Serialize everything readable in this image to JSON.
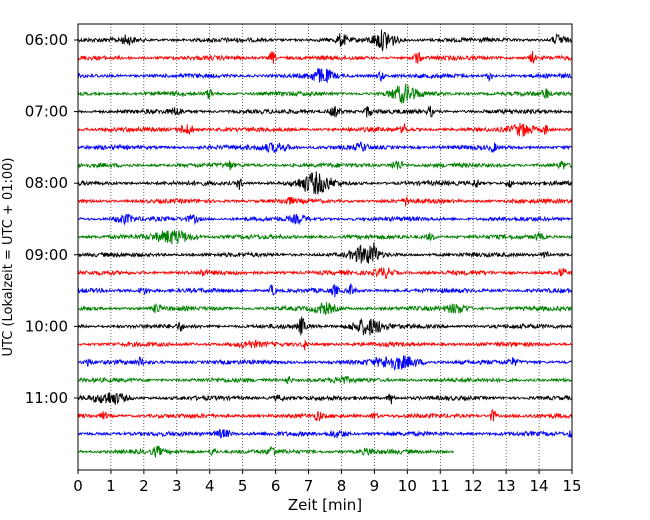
{
  "chart_data": {
    "type": "line",
    "title": "",
    "xlabel": "Zeit  [min]",
    "ylabel": "UTC (Lokalzeit = UTC + 01:00)",
    "xlim": [
      0,
      15
    ],
    "x_ticks": [
      0,
      1,
      2,
      3,
      4,
      5,
      6,
      7,
      8,
      9,
      10,
      11,
      12,
      13,
      14,
      15
    ],
    "x_tick_labels": [
      "0",
      "1",
      "2",
      "3",
      "4",
      "5",
      "6",
      "7",
      "8",
      "9",
      "10",
      "11",
      "12",
      "13",
      "14",
      "15"
    ],
    "y_tick_labels": [
      "06:00",
      "07:00",
      "08:00",
      "09:00",
      "10:00",
      "11:00"
    ],
    "grid": "vertical dotted lines at every minute",
    "row_interval_min": 15,
    "trace_colors": [
      "#000000",
      "#ff0000",
      "#0000ff",
      "#008000"
    ],
    "traces": [
      {
        "start": "06:00",
        "end_min": 15,
        "events": [
          {
            "t": 9.3,
            "amp": 1.2,
            "dur": 0.6
          },
          {
            "t": 8.0,
            "amp": 0.7,
            "dur": 0.2
          },
          {
            "t": 1.5,
            "amp": 0.5,
            "dur": 0.3
          },
          {
            "t": 14.6,
            "amp": 0.6,
            "dur": 0.3
          }
        ]
      },
      {
        "start": "06:15",
        "end_min": 15,
        "events": [
          {
            "t": 5.9,
            "amp": 0.8,
            "dur": 0.1
          },
          {
            "t": 10.3,
            "amp": 0.8,
            "dur": 0.1
          },
          {
            "t": 13.8,
            "amp": 0.7,
            "dur": 0.1
          }
        ]
      },
      {
        "start": "06:30",
        "end_min": 15,
        "events": [
          {
            "t": 7.4,
            "amp": 0.8,
            "dur": 0.6
          },
          {
            "t": 9.2,
            "amp": 0.6,
            "dur": 0.1
          },
          {
            "t": 12.5,
            "amp": 0.5,
            "dur": 0.1
          }
        ]
      },
      {
        "start": "06:45",
        "end_min": 15,
        "events": [
          {
            "t": 9.9,
            "amp": 1.0,
            "dur": 0.7
          },
          {
            "t": 4.0,
            "amp": 0.6,
            "dur": 0.1
          },
          {
            "t": 14.2,
            "amp": 0.6,
            "dur": 0.1
          }
        ]
      },
      {
        "start": "07:00",
        "end_min": 15,
        "events": [
          {
            "t": 7.8,
            "amp": 0.6,
            "dur": 0.3
          },
          {
            "t": 8.8,
            "amp": 0.7,
            "dur": 0.1
          },
          {
            "t": 10.7,
            "amp": 0.6,
            "dur": 0.1
          },
          {
            "t": 3.0,
            "amp": 0.4,
            "dur": 0.3
          }
        ]
      },
      {
        "start": "07:15",
        "end_min": 15,
        "events": [
          {
            "t": 3.3,
            "amp": 0.6,
            "dur": 0.4
          },
          {
            "t": 9.9,
            "amp": 0.6,
            "dur": 0.1
          },
          {
            "t": 13.5,
            "amp": 0.7,
            "dur": 0.6
          },
          {
            "t": 14.2,
            "amp": 0.6,
            "dur": 0.1
          }
        ]
      },
      {
        "start": "07:30",
        "end_min": 15,
        "events": [
          {
            "t": 6.0,
            "amp": 0.5,
            "dur": 0.8
          },
          {
            "t": 8.6,
            "amp": 0.4,
            "dur": 0.3
          },
          {
            "t": 12.6,
            "amp": 0.5,
            "dur": 0.1
          }
        ]
      },
      {
        "start": "07:45",
        "end_min": 15,
        "events": [
          {
            "t": 4.6,
            "amp": 0.5,
            "dur": 0.1
          },
          {
            "t": 9.7,
            "amp": 0.6,
            "dur": 0.3
          },
          {
            "t": 14.7,
            "amp": 0.5,
            "dur": 0.1
          }
        ]
      },
      {
        "start": "08:00",
        "end_min": 15,
        "events": [
          {
            "t": 7.2,
            "amp": 1.2,
            "dur": 0.9
          },
          {
            "t": 4.9,
            "amp": 0.7,
            "dur": 0.1
          },
          {
            "t": 12.1,
            "amp": 0.5,
            "dur": 0.1
          },
          {
            "t": 13.1,
            "amp": 0.5,
            "dur": 0.1
          }
        ]
      },
      {
        "start": "08:15",
        "end_min": 15,
        "events": [
          {
            "t": 10.0,
            "amp": 0.6,
            "dur": 0.1
          },
          {
            "t": 6.4,
            "amp": 0.3,
            "dur": 0.3
          }
        ]
      },
      {
        "start": "08:30",
        "end_min": 15,
        "events": [
          {
            "t": 1.4,
            "amp": 0.5,
            "dur": 0.5
          },
          {
            "t": 3.5,
            "amp": 0.4,
            "dur": 0.3
          },
          {
            "t": 6.7,
            "amp": 0.4,
            "dur": 0.4
          }
        ]
      },
      {
        "start": "08:45",
        "end_min": 15,
        "events": [
          {
            "t": 2.9,
            "amp": 0.8,
            "dur": 1.0
          },
          {
            "t": 10.7,
            "amp": 0.4,
            "dur": 0.2
          },
          {
            "t": 14.0,
            "amp": 0.4,
            "dur": 0.2
          }
        ]
      },
      {
        "start": "09:00",
        "end_min": 15,
        "events": [
          {
            "t": 8.7,
            "amp": 1.0,
            "dur": 0.7
          },
          {
            "t": 9.0,
            "amp": 0.8,
            "dur": 0.1
          },
          {
            "t": 14.2,
            "amp": 0.7,
            "dur": 0.1
          }
        ]
      },
      {
        "start": "09:15",
        "end_min": 15,
        "events": [
          {
            "t": 9.3,
            "amp": 0.6,
            "dur": 0.5
          },
          {
            "t": 3.8,
            "amp": 0.4,
            "dur": 0.1
          },
          {
            "t": 14.7,
            "amp": 0.5,
            "dur": 0.1
          }
        ]
      },
      {
        "start": "09:30",
        "end_min": 15,
        "events": [
          {
            "t": 5.9,
            "amp": 0.7,
            "dur": 0.1
          },
          {
            "t": 7.8,
            "amp": 0.6,
            "dur": 0.1
          },
          {
            "t": 8.3,
            "amp": 0.7,
            "dur": 0.1
          },
          {
            "t": 2.0,
            "amp": 0.4,
            "dur": 0.3
          }
        ]
      },
      {
        "start": "09:45",
        "end_min": 15,
        "events": [
          {
            "t": 2.4,
            "amp": 0.7,
            "dur": 0.1
          },
          {
            "t": 7.5,
            "amp": 0.6,
            "dur": 0.5
          },
          {
            "t": 11.5,
            "amp": 0.5,
            "dur": 0.6
          }
        ]
      },
      {
        "start": "10:00",
        "end_min": 15,
        "events": [
          {
            "t": 6.8,
            "amp": 1.2,
            "dur": 0.1
          },
          {
            "t": 8.8,
            "amp": 1.0,
            "dur": 0.9
          },
          {
            "t": 3.1,
            "amp": 0.5,
            "dur": 0.1
          }
        ]
      },
      {
        "start": "10:15",
        "end_min": 15,
        "events": [
          {
            "t": 6.9,
            "amp": 0.6,
            "dur": 0.1
          },
          {
            "t": 5.2,
            "amp": 0.3,
            "dur": 0.6
          }
        ]
      },
      {
        "start": "10:30",
        "end_min": 15,
        "events": [
          {
            "t": 9.7,
            "amp": 0.8,
            "dur": 1.2
          },
          {
            "t": 0.3,
            "amp": 0.5,
            "dur": 0.1
          },
          {
            "t": 1.9,
            "amp": 0.5,
            "dur": 0.1
          },
          {
            "t": 13.2,
            "amp": 0.4,
            "dur": 0.2
          }
        ]
      },
      {
        "start": "10:45",
        "end_min": 15,
        "events": [
          {
            "t": 6.4,
            "amp": 0.5,
            "dur": 0.1
          },
          {
            "t": 8.0,
            "amp": 0.3,
            "dur": 0.4
          }
        ]
      },
      {
        "start": "11:00",
        "end_min": 15,
        "events": [
          {
            "t": 1.0,
            "amp": 0.7,
            "dur": 0.8
          },
          {
            "t": 9.5,
            "amp": 0.7,
            "dur": 0.1
          },
          {
            "t": 6.1,
            "amp": 0.3,
            "dur": 0.3
          }
        ]
      },
      {
        "start": "11:15",
        "end_min": 15,
        "events": [
          {
            "t": 7.3,
            "amp": 0.6,
            "dur": 0.1
          },
          {
            "t": 9.0,
            "amp": 0.5,
            "dur": 0.1
          },
          {
            "t": 12.6,
            "amp": 0.8,
            "dur": 0.1
          },
          {
            "t": 0.8,
            "amp": 0.5,
            "dur": 0.1
          }
        ]
      },
      {
        "start": "11:30",
        "end_min": 15,
        "events": [
          {
            "t": 4.4,
            "amp": 0.5,
            "dur": 0.4
          },
          {
            "t": 7.9,
            "amp": 0.4,
            "dur": 0.5
          },
          {
            "t": 15.0,
            "amp": 0.6,
            "dur": 0.1
          }
        ]
      },
      {
        "start": "11:45",
        "end_min": 11.4,
        "events": [
          {
            "t": 2.4,
            "amp": 0.5,
            "dur": 0.2
          },
          {
            "t": 4.1,
            "amp": 0.5,
            "dur": 0.1
          },
          {
            "t": 5.9,
            "amp": 0.6,
            "dur": 0.1
          },
          {
            "t": 8.8,
            "amp": 0.3,
            "dur": 0.3
          }
        ]
      }
    ]
  }
}
